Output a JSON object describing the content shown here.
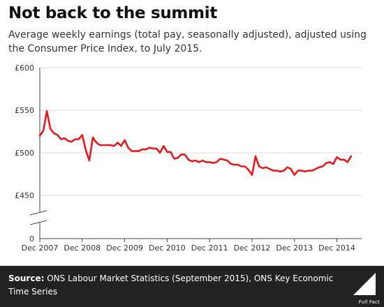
{
  "header": {
    "title": "Not back to the summit",
    "subtitle": "Average weekly earnings (total pay, seasonally adjusted), adjusted using the Consumer Price Index, to July 2015."
  },
  "footer": {
    "source_label": "Source:",
    "source_text": "ONS Labour Market Statistics (September 2015), ONS Key Economic Time Series",
    "logo_text": "Full Fact"
  },
  "colors": {
    "line": "#e8191d",
    "footer_bg": "#222222",
    "axis": "#444444"
  },
  "chart_data": {
    "type": "line",
    "title": "Not back to the summit",
    "xlabel": "",
    "ylabel": "",
    "axis_break": true,
    "ylim": [
      430,
      600
    ],
    "y_ticks": [
      {
        "value": 600,
        "label": "£600"
      },
      {
        "value": 550,
        "label": "£550"
      },
      {
        "value": 500,
        "label": "£500"
      },
      {
        "value": 450,
        "label": "£450"
      },
      {
        "value": 0,
        "label": "0"
      }
    ],
    "x_ticks": [
      {
        "x": "2007-12",
        "label": "Dec 2007"
      },
      {
        "x": "2008-12",
        "label": "Dec 2008"
      },
      {
        "x": "2009-12",
        "label": "Dec 2009"
      },
      {
        "x": "2010-12",
        "label": "Dec 2010"
      },
      {
        "x": "2011-12",
        "label": "Dec 2011"
      },
      {
        "x": "2012-12",
        "label": "Dec 2012"
      },
      {
        "x": "2013-12",
        "label": "Dec 2013"
      },
      {
        "x": "2014-12",
        "label": "Dec 2014"
      }
    ],
    "grid": "horizontal",
    "x_range": [
      "2007-12",
      "2015-07"
    ],
    "series": [
      {
        "color": "#e8191d",
        "x": [
          "2007-12",
          "2008-01",
          "2008-02",
          "2008-03",
          "2008-04",
          "2008-05",
          "2008-06",
          "2008-07",
          "2008-08",
          "2008-09",
          "2008-10",
          "2008-11",
          "2008-12",
          "2009-01",
          "2009-02",
          "2009-03",
          "2009-04",
          "2009-05",
          "2009-06",
          "2009-07",
          "2009-08",
          "2009-09",
          "2009-10",
          "2009-11",
          "2009-12",
          "2010-01",
          "2010-02",
          "2010-03",
          "2010-04",
          "2010-05",
          "2010-06",
          "2010-07",
          "2010-08",
          "2010-09",
          "2010-10",
          "2010-11",
          "2010-12",
          "2011-01",
          "2011-02",
          "2011-03",
          "2011-04",
          "2011-05",
          "2011-06",
          "2011-07",
          "2011-08",
          "2011-09",
          "2011-10",
          "2011-11",
          "2011-12",
          "2012-01",
          "2012-02",
          "2012-03",
          "2012-04",
          "2012-05",
          "2012-06",
          "2012-07",
          "2012-08",
          "2012-09",
          "2012-10",
          "2012-11",
          "2012-12",
          "2013-01",
          "2013-02",
          "2013-03",
          "2013-04",
          "2013-05",
          "2013-06",
          "2013-07",
          "2013-08",
          "2013-09",
          "2013-10",
          "2013-11",
          "2013-12",
          "2014-01",
          "2014-02",
          "2014-03",
          "2014-04",
          "2014-05",
          "2014-06",
          "2014-07",
          "2014-08",
          "2014-09",
          "2014-10",
          "2014-11",
          "2014-12",
          "2015-01",
          "2015-02",
          "2015-03",
          "2015-04",
          "2015-05",
          "2015-06",
          "2015-07"
        ],
        "values": [
          520,
          526,
          549,
          528,
          523,
          521,
          516,
          517,
          514,
          513,
          516,
          516,
          521,
          503,
          491,
          518,
          512,
          509,
          509,
          509,
          509,
          508,
          512,
          508,
          515,
          506,
          502,
          502,
          502,
          504,
          504,
          506,
          505,
          505,
          500,
          508,
          501,
          501,
          493,
          494,
          498,
          498,
          492,
          490,
          491,
          489,
          491,
          489,
          489,
          488,
          489,
          493,
          492,
          491,
          487,
          486,
          486,
          484,
          484,
          480,
          474,
          496,
          484,
          482,
          483,
          481,
          479,
          479,
          478,
          479,
          483,
          481,
          474,
          479,
          479,
          478,
          479,
          479,
          481,
          483,
          484,
          488,
          489,
          487,
          495,
          492,
          492,
          489,
          496,
          null,
          null,
          null
        ]
      }
    ]
  }
}
